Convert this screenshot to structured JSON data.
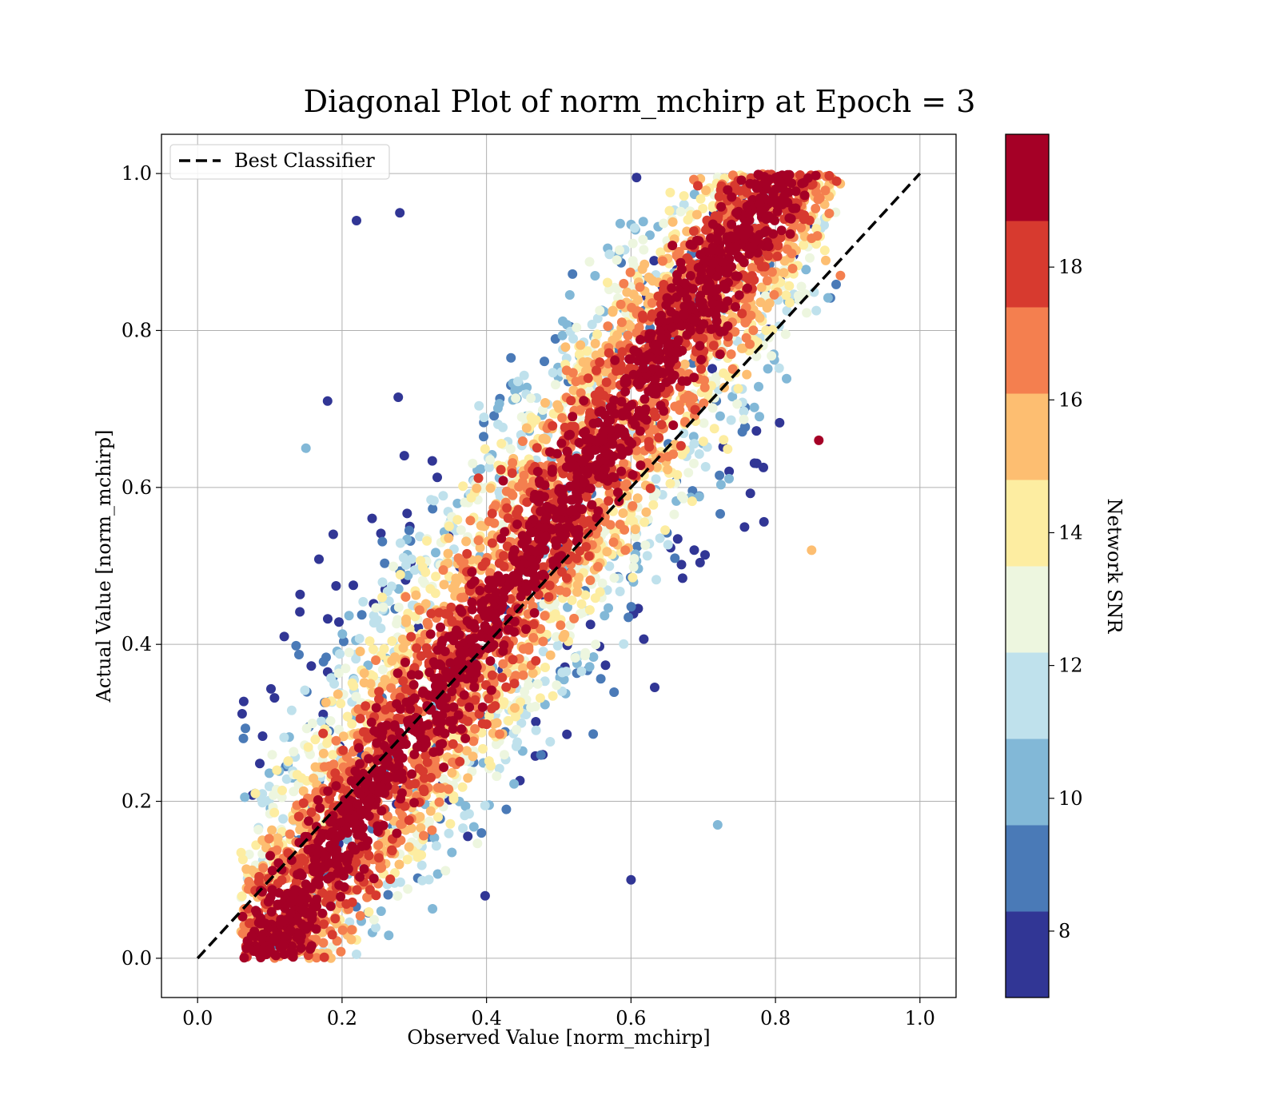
{
  "chart_data": {
    "type": "scatter",
    "title": "Diagonal Plot of norm_mchirp at Epoch = 3",
    "xlabel": "Observed Value [norm_mchirp]",
    "ylabel": "Actual Value [norm_mchirp]",
    "xlim": [
      -0.05,
      1.05
    ],
    "ylim": [
      -0.05,
      1.05
    ],
    "xticks": [
      0.0,
      0.2,
      0.4,
      0.6,
      0.8,
      1.0
    ],
    "yticks": [
      0.0,
      0.2,
      0.4,
      0.6,
      0.8,
      1.0
    ],
    "xtick_labels": [
      "0.0",
      "0.2",
      "0.4",
      "0.6",
      "0.8",
      "1.0"
    ],
    "ytick_labels": [
      "0.0",
      "0.2",
      "0.4",
      "0.6",
      "0.8",
      "1.0"
    ],
    "grid": true,
    "legend": {
      "placement": "upper-left",
      "entries": [
        "Best Classifier"
      ]
    },
    "reference_line": {
      "name": "Best Classifier",
      "style": "dashed",
      "color": "#000000",
      "x": [
        0.0,
        1.0
      ],
      "y": [
        0.0,
        1.0
      ]
    },
    "colorbar": {
      "label": "Network SNR",
      "range": [
        7,
        20
      ],
      "boundaries": [
        7,
        8.3,
        9.6,
        10.9,
        12.2,
        13.5,
        14.8,
        16.1,
        17.4,
        18.7,
        20
      ],
      "ticks": [
        8,
        10,
        12,
        14,
        16,
        18
      ],
      "tick_labels": [
        "8",
        "10",
        "12",
        "14",
        "16",
        "18"
      ],
      "colors": [
        "#313695",
        "#4a7ab7",
        "#82b8d7",
        "#bfe1ec",
        "#edf6df",
        "#fdeda1",
        "#fdbe71",
        "#f47f4f",
        "#d73a2f",
        "#a50026"
      ]
    },
    "point_distribution": {
      "description_of_shape": "points scattered around the diagonal, high SNR near diagonal, low SNR far from it",
      "x_range": [
        0.06,
        0.89
      ],
      "y_range": [
        0.0,
        1.0
      ],
      "sample_points": [
        {
          "x": 0.22,
          "y": 0.94,
          "snr": 7.5
        },
        {
          "x": 0.28,
          "y": 0.95,
          "snr": 7.5
        },
        {
          "x": 0.18,
          "y": 0.71,
          "snr": 7.5
        },
        {
          "x": 0.15,
          "y": 0.65,
          "snr": 10.5
        },
        {
          "x": 0.12,
          "y": 0.41,
          "snr": 7.5
        },
        {
          "x": 0.6,
          "y": 0.1,
          "snr": 7.5
        },
        {
          "x": 0.72,
          "y": 0.17,
          "snr": 10.5
        },
        {
          "x": 0.85,
          "y": 0.52,
          "snr": 15.5
        },
        {
          "x": 0.89,
          "y": 0.87,
          "snr": 17.0
        },
        {
          "x": 0.86,
          "y": 0.66,
          "snr": 19.5
        },
        {
          "x": 0.08,
          "y": 0.21,
          "snr": 14.5
        },
        {
          "x": 0.12,
          "y": 0.005,
          "snr": 19.5
        },
        {
          "x": 0.22,
          "y": 0.005,
          "snr": 11.5
        }
      ]
    }
  }
}
